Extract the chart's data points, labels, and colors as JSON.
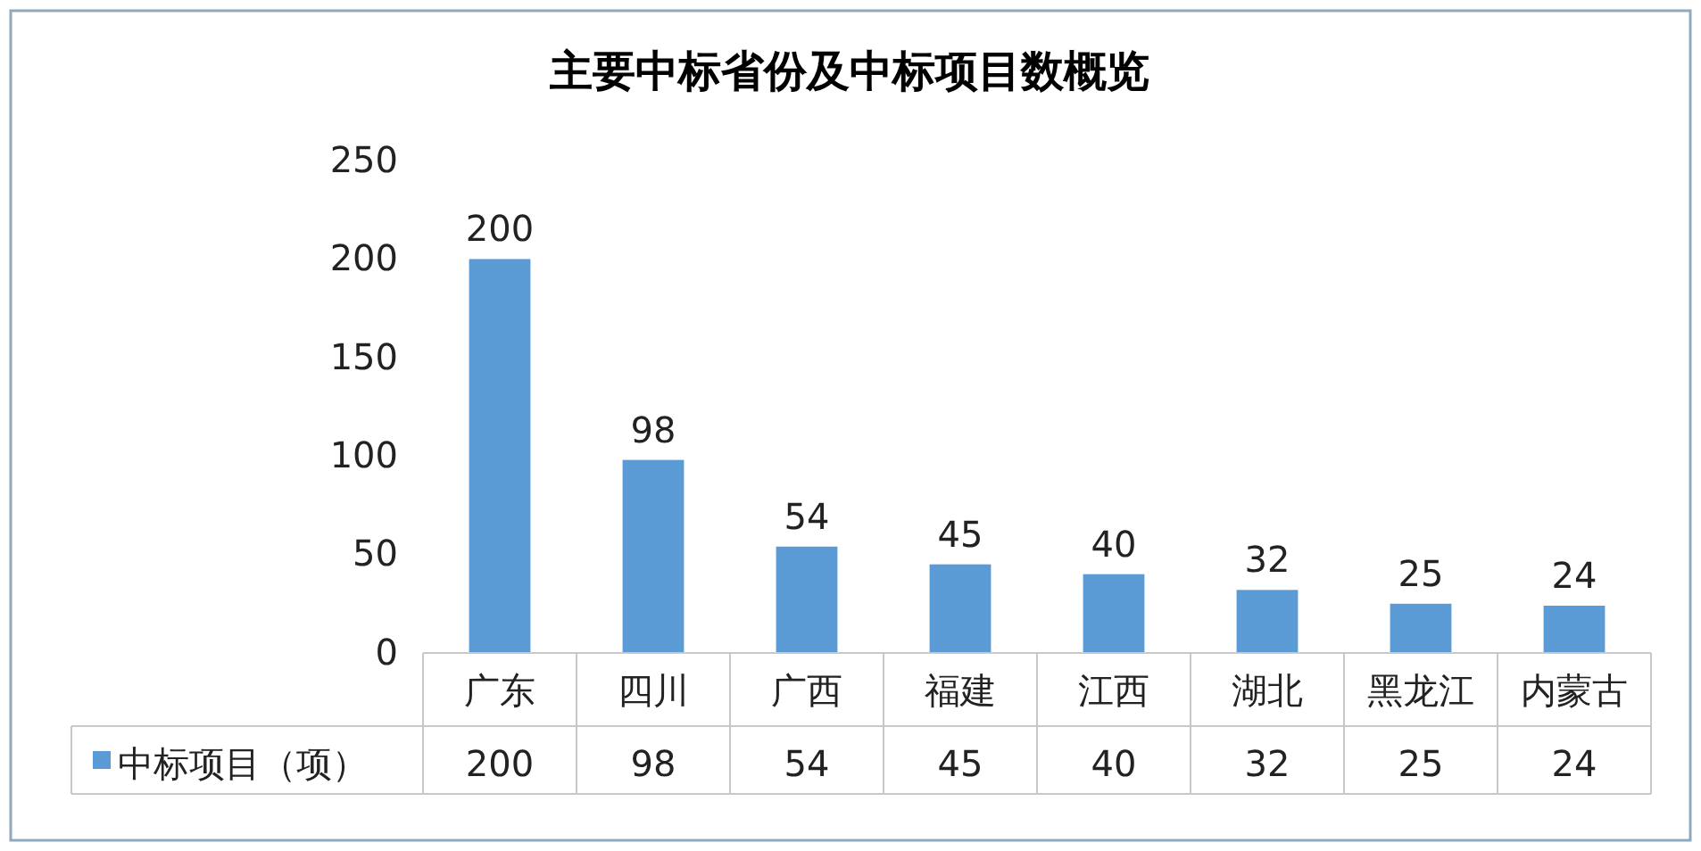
{
  "chart_data": {
    "type": "bar",
    "title": "主要中标省份及中标项目数概览",
    "categories": [
      "广东",
      "四川",
      "广西",
      "福建",
      "江西",
      "湖北",
      "黑龙江",
      "内蒙古"
    ],
    "series": [
      {
        "name": "中标项目（项）",
        "color": "#5b9bd5",
        "values": [
          200,
          98,
          54,
          45,
          40,
          32,
          25,
          24
        ],
        "value_labels": [
          "200",
          "98",
          "54",
          "45",
          "40",
          "32",
          "25",
          "24"
        ]
      }
    ],
    "ylim": [
      0,
      250
    ],
    "yticks": [
      0,
      50,
      100,
      150,
      200,
      250
    ],
    "annotations": [
      "200",
      "98",
      "54",
      "45",
      "40",
      "32",
      "25",
      "24"
    ],
    "legend": "bottom left",
    "grid": false
  }
}
